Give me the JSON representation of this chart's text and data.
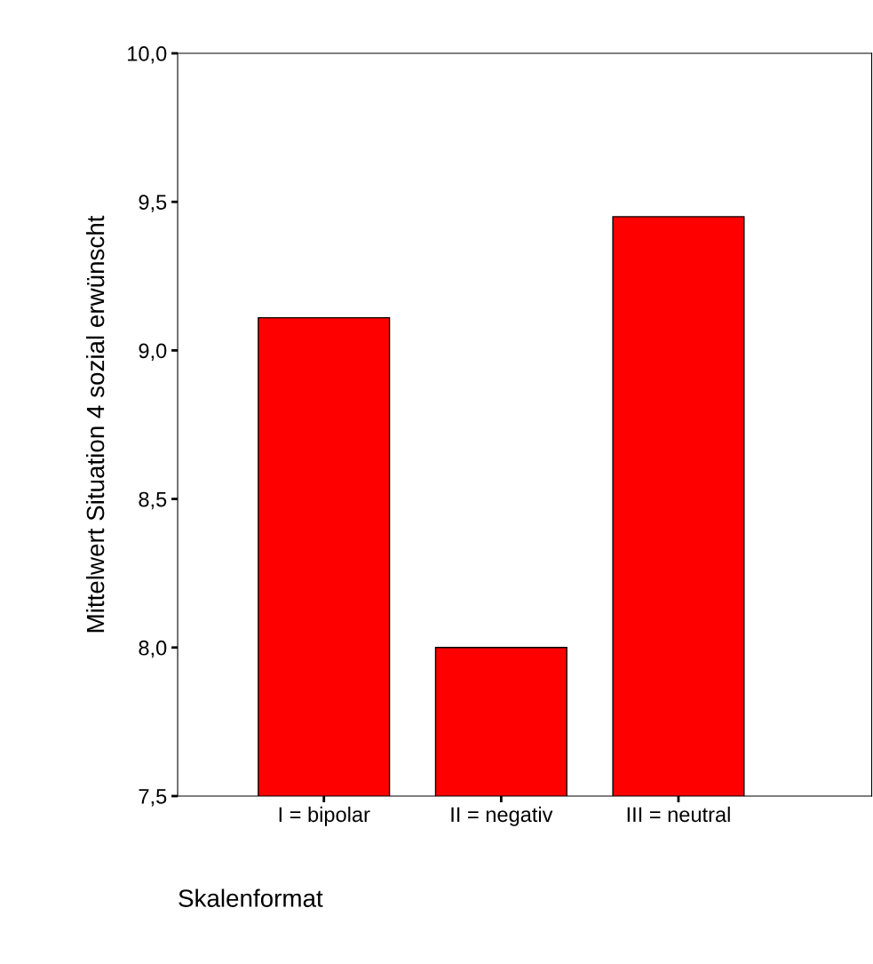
{
  "chart_data": {
    "type": "bar",
    "categories": [
      "I = bipolar",
      "II = negativ",
      "III = neutral"
    ],
    "values": [
      9.11,
      8.0,
      9.45
    ],
    "color": "#ff0000",
    "xlabel": "Skalenformat",
    "ylabel": "Mittelwert Situation 4 sozial erwünscht",
    "ylim": [
      7.5,
      10.0
    ],
    "yticks": [
      {
        "value": 7.5,
        "label": "7,5"
      },
      {
        "value": 8.0,
        "label": "8,0"
      },
      {
        "value": 8.5,
        "label": "8,5"
      },
      {
        "value": 9.0,
        "label": "9,0"
      },
      {
        "value": 9.5,
        "label": "9,5"
      },
      {
        "value": 10.0,
        "label": "10,0"
      }
    ],
    "grid": false
  }
}
